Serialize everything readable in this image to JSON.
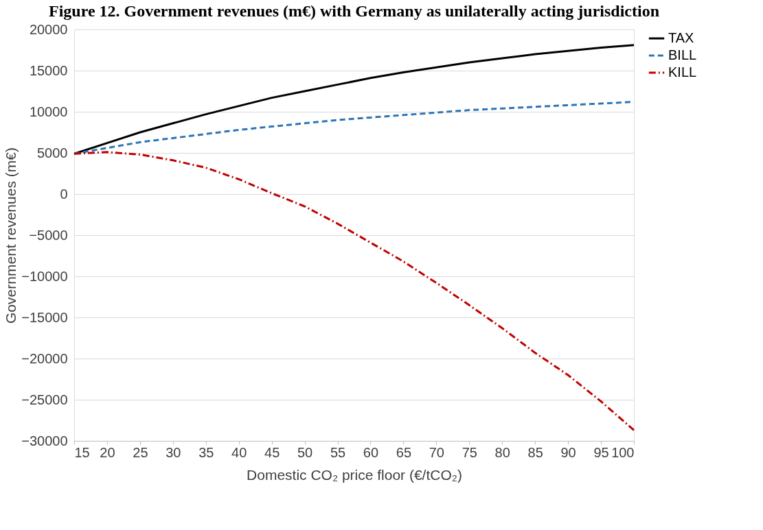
{
  "chart_data": {
    "type": "line",
    "title": "Figure 12. Government revenues (m€) with Germany as unilaterally acting jurisdiction",
    "xlabel": "Domestic CO₂ price floor (€/tCO₂)",
    "ylabel": "Government revenues (m€)",
    "x": [
      15,
      20,
      25,
      30,
      35,
      40,
      45,
      50,
      55,
      60,
      65,
      70,
      75,
      80,
      85,
      90,
      95,
      100
    ],
    "series": [
      {
        "name": "TAX",
        "color": "#000000",
        "line_style": "solid",
        "values": [
          4900,
          6200,
          7500,
          8600,
          9700,
          10700,
          11700,
          12500,
          13300,
          14100,
          14800,
          15400,
          16000,
          16500,
          17000,
          17400,
          17800,
          18100
        ]
      },
      {
        "name": "BILL",
        "color": "#2e75b6",
        "line_style": "dashed",
        "values": [
          4900,
          5600,
          6300,
          6800,
          7300,
          7800,
          8200,
          8600,
          9000,
          9300,
          9600,
          9900,
          10200,
          10400,
          10600,
          10800,
          11000,
          11200
        ]
      },
      {
        "name": "KILL",
        "color": "#c00000",
        "line_style": "dashdot",
        "values": [
          4900,
          5100,
          4800,
          4100,
          3200,
          1800,
          100,
          -1500,
          -3600,
          -5900,
          -8200,
          -10800,
          -13500,
          -16300,
          -19300,
          -22000,
          -25200,
          -28700
        ]
      }
    ],
    "xlim": [
      15,
      100
    ],
    "xticks": [
      15,
      20,
      25,
      30,
      35,
      40,
      45,
      50,
      55,
      60,
      65,
      70,
      75,
      80,
      85,
      90,
      95,
      100
    ],
    "ylim": [
      -30000,
      20000
    ],
    "yticks": [
      -30000,
      -25000,
      -20000,
      -15000,
      -10000,
      -5000,
      0,
      5000,
      10000,
      15000,
      20000
    ],
    "grid": "y",
    "legend": "right",
    "marker": "none"
  }
}
